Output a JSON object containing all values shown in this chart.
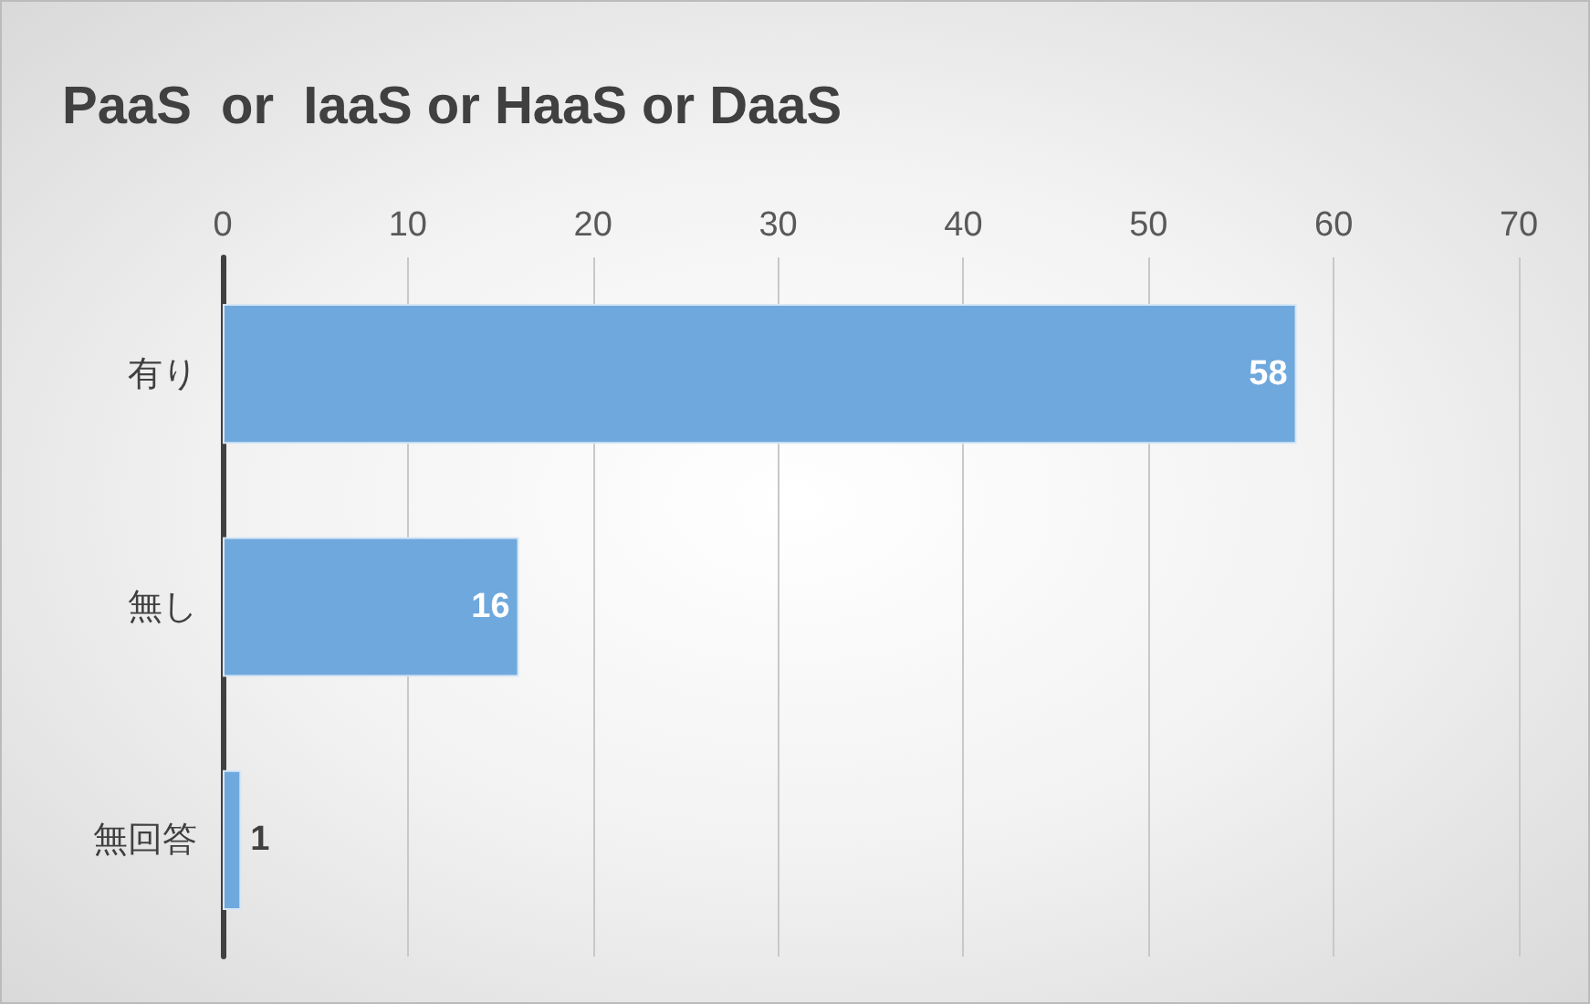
{
  "chart_data": {
    "type": "bar",
    "orientation": "horizontal",
    "title": "PaaS  or  IaaS or HaaS or DaaS",
    "categories": [
      "有り",
      "無し",
      "無回答"
    ],
    "values": [
      58,
      16,
      1
    ],
    "color": "#6fa8dc",
    "xlim": [
      0,
      70
    ],
    "xticks": [
      0,
      10,
      20,
      30,
      40,
      50,
      60,
      70
    ],
    "grid": "x",
    "data_labels": true
  }
}
